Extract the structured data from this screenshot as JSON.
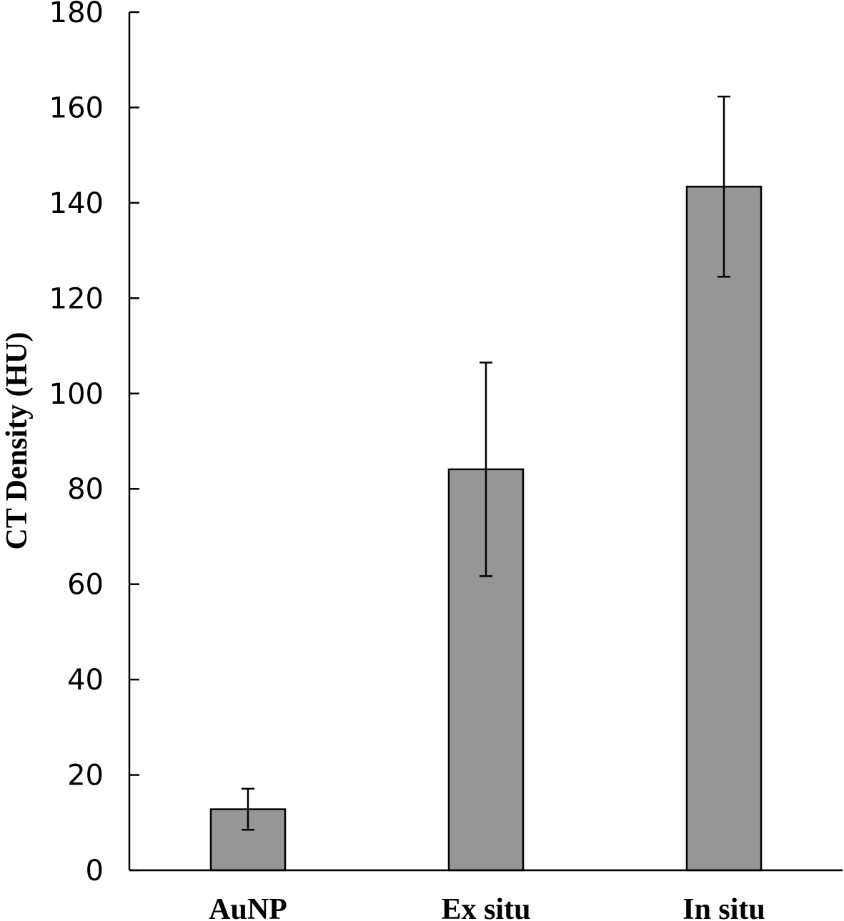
{
  "chart_data": {
    "type": "bar",
    "title": "",
    "xlabel": "",
    "ylabel": "CT Density (HU)",
    "categories": [
      "AuNP",
      "Ex situ",
      "In situ"
    ],
    "values": [
      12.8,
      84.1,
      143.4
    ],
    "error": [
      4.3,
      22.4,
      18.9
    ],
    "ylim": [
      0,
      180
    ],
    "yticks": [
      0,
      20,
      40,
      60,
      80,
      100,
      120,
      140,
      160,
      180
    ],
    "grid": false,
    "bar_color": "#969696",
    "edge_color": "#000000"
  }
}
